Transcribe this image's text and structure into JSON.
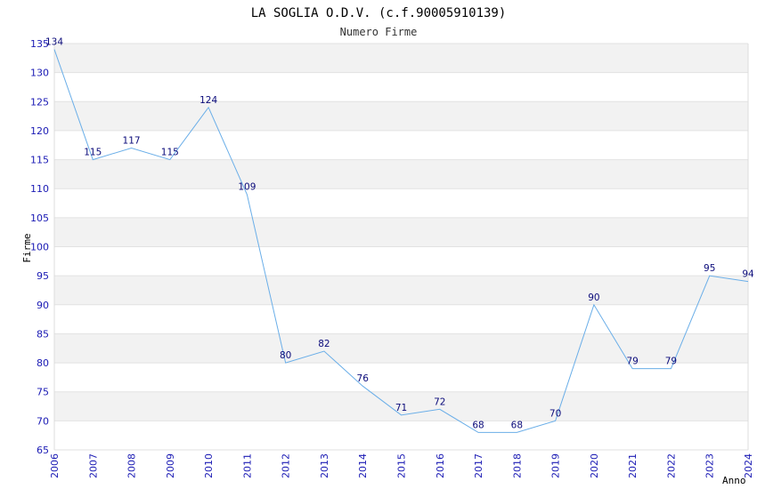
{
  "chart_data": {
    "type": "line",
    "title": "LA SOGLIA O.D.V. (c.f.90005910139)",
    "subtitle": "Numero Firme",
    "xlabel": "Anno",
    "ylabel": "Firme",
    "ylim": [
      65,
      135
    ],
    "y_ticks": [
      65,
      70,
      75,
      80,
      85,
      90,
      95,
      100,
      105,
      110,
      115,
      120,
      125,
      130,
      135
    ],
    "x": [
      "2006",
      "2007",
      "2008",
      "2009",
      "2010",
      "2011",
      "2012",
      "2013",
      "2014",
      "2015",
      "2016",
      "2017",
      "2018",
      "2019",
      "2020",
      "2021",
      "2022",
      "2023",
      "2024"
    ],
    "values": [
      134,
      115,
      117,
      115,
      124,
      109,
      80,
      82,
      76,
      71,
      72,
      68,
      68,
      70,
      90,
      79,
      79,
      95,
      94
    ],
    "grid": true,
    "colors": {
      "line": "#6aaee8",
      "band": "#f2f2f2",
      "tick_text": "#1a1ab4",
      "label_text": "#0a0a7a"
    }
  }
}
